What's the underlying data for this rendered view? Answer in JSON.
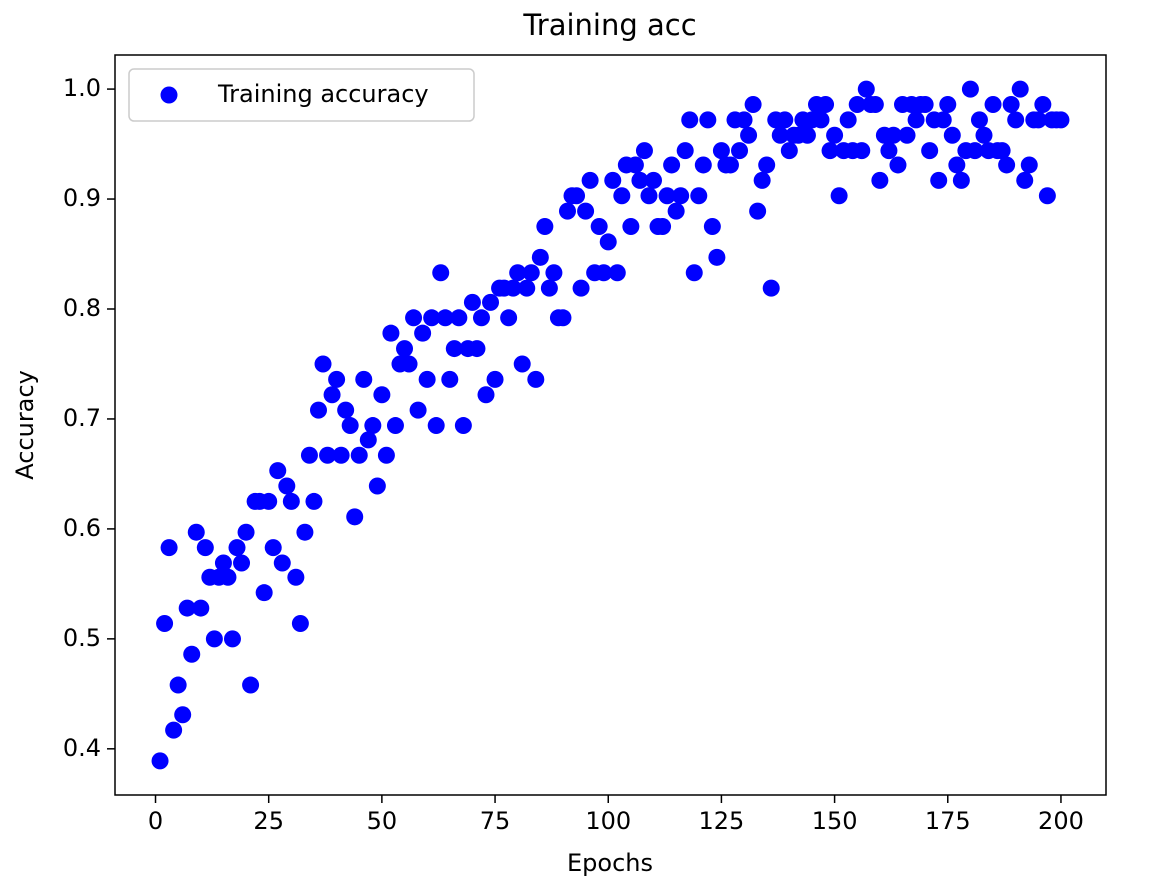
{
  "chart_data": {
    "type": "scatter",
    "title": "Training acc",
    "xlabel": "Epochs",
    "ylabel": "Accuracy",
    "x": [
      1,
      2,
      3,
      4,
      5,
      6,
      7,
      8,
      9,
      10,
      11,
      12,
      13,
      14,
      15,
      16,
      17,
      18,
      19,
      20,
      21,
      22,
      23,
      24,
      25,
      26,
      27,
      28,
      29,
      30,
      31,
      32,
      33,
      34,
      35,
      36,
      37,
      38,
      39,
      40,
      41,
      42,
      43,
      44,
      45,
      46,
      47,
      48,
      49,
      50,
      51,
      52,
      53,
      54,
      55,
      56,
      57,
      58,
      59,
      60,
      61,
      62,
      63,
      64,
      65,
      66,
      67,
      68,
      69,
      70,
      71,
      72,
      73,
      74,
      75,
      76,
      77,
      78,
      79,
      80,
      81,
      82,
      83,
      84,
      85,
      86,
      87,
      88,
      89,
      90,
      91,
      92,
      93,
      94,
      95,
      96,
      97,
      98,
      99,
      100,
      101,
      102,
      103,
      104,
      105,
      106,
      107,
      108,
      109,
      110,
      111,
      112,
      113,
      114,
      115,
      116,
      117,
      118,
      119,
      120,
      121,
      122,
      123,
      124,
      125,
      126,
      127,
      128,
      129,
      130,
      131,
      132,
      133,
      134,
      135,
      136,
      137,
      138,
      139,
      140,
      141,
      142,
      143,
      144,
      145,
      146,
      147,
      148,
      149,
      150,
      151,
      152,
      153,
      154,
      155,
      156,
      157,
      158,
      159,
      160,
      161,
      162,
      163,
      164,
      165,
      166,
      167,
      168,
      169,
      170,
      171,
      172,
      173,
      174,
      175,
      176,
      177,
      178,
      179,
      180,
      181,
      182,
      183,
      184,
      185,
      186,
      187,
      188,
      189,
      190,
      191,
      192,
      193,
      194,
      195,
      196,
      197,
      198,
      199,
      200
    ],
    "series": [
      {
        "name": "Training accuracy",
        "color": "#0000ff",
        "values": [
          0.389,
          0.514,
          0.583,
          0.417,
          0.458,
          0.431,
          0.528,
          0.486,
          0.597,
          0.528,
          0.583,
          0.556,
          0.5,
          0.556,
          0.569,
          0.556,
          0.5,
          0.583,
          0.569,
          0.597,
          0.458,
          0.625,
          0.625,
          0.542,
          0.625,
          0.583,
          0.653,
          0.569,
          0.639,
          0.625,
          0.556,
          0.514,
          0.597,
          0.667,
          0.625,
          0.708,
          0.75,
          0.667,
          0.722,
          0.736,
          0.667,
          0.708,
          0.694,
          0.611,
          0.667,
          0.736,
          0.681,
          0.694,
          0.639,
          0.722,
          0.667,
          0.778,
          0.694,
          0.75,
          0.764,
          0.75,
          0.792,
          0.708,
          0.778,
          0.736,
          0.792,
          0.694,
          0.833,
          0.792,
          0.736,
          0.764,
          0.792,
          0.694,
          0.764,
          0.806,
          0.764,
          0.792,
          0.722,
          0.806,
          0.736,
          0.819,
          0.819,
          0.792,
          0.819,
          0.833,
          0.75,
          0.819,
          0.833,
          0.736,
          0.847,
          0.875,
          0.819,
          0.833,
          0.792,
          0.792,
          0.889,
          0.903,
          0.903,
          0.819,
          0.889,
          0.917,
          0.833,
          0.875,
          0.833,
          0.861,
          0.917,
          0.833,
          0.903,
          0.931,
          0.875,
          0.931,
          0.917,
          0.944,
          0.903,
          0.917,
          0.875,
          0.875,
          0.903,
          0.931,
          0.889,
          0.903,
          0.944,
          0.972,
          0.833,
          0.903,
          0.931,
          0.972,
          0.875,
          0.847,
          0.944,
          0.931,
          0.931,
          0.972,
          0.944,
          0.972,
          0.958,
          0.986,
          0.889,
          0.917,
          0.931,
          0.819,
          0.972,
          0.958,
          0.972,
          0.944,
          0.958,
          0.958,
          0.972,
          0.958,
          0.972,
          0.986,
          0.972,
          0.986,
          0.944,
          0.958,
          0.903,
          0.944,
          0.972,
          0.944,
          0.986,
          0.944,
          1.0,
          0.986,
          0.986,
          0.917,
          0.958,
          0.944,
          0.958,
          0.931,
          0.986,
          0.958,
          0.986,
          0.972,
          0.986,
          0.986,
          0.944,
          0.972,
          0.917,
          0.972,
          0.986,
          0.958,
          0.931,
          0.917,
          0.944,
          1.0,
          0.944,
          0.972,
          0.958,
          0.944,
          0.986,
          0.944,
          0.944,
          0.931,
          0.986,
          0.972,
          1.0,
          0.917,
          0.931,
          0.972,
          0.972,
          0.986,
          0.903,
          0.972,
          0.972,
          0.972
        ]
      }
    ],
    "xlim": [
      -8.95,
      209.95
    ],
    "xticks": [
      0,
      25,
      50,
      75,
      100,
      125,
      150,
      175,
      200
    ],
    "ylim": [
      0.358,
      1.031
    ],
    "yticks": [
      0.4,
      0.5,
      0.6,
      0.7,
      0.8,
      0.9,
      {
        "value": 1,
        "label": "1.0"
      }
    ],
    "legend": "upper left",
    "grid": false
  }
}
